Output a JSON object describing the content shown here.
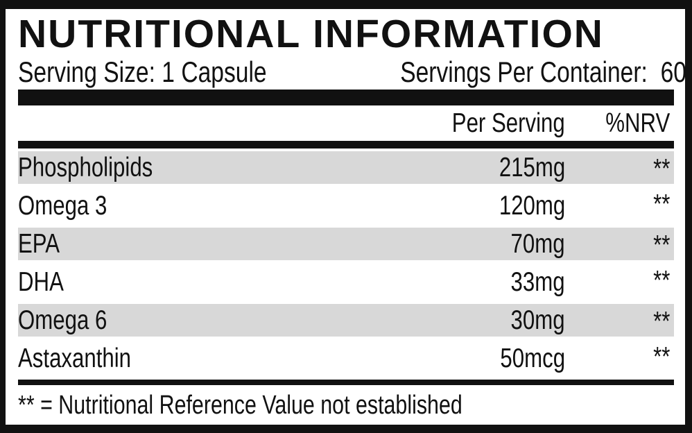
{
  "label": {
    "title": "NUTRITIONAL INFORMATION",
    "serving_size": "Serving Size: 1 Capsule",
    "servings_per_container": "Servings Per Container:  60",
    "columns": {
      "per_serving": "Per Serving",
      "nrv": "%NRV"
    },
    "rows": [
      {
        "name": "Phospholipids",
        "amount": "215mg",
        "nrv": "**"
      },
      {
        "name": "Omega 3",
        "amount": "120mg",
        "nrv": "**"
      },
      {
        "name": "EPA",
        "amount": "70mg",
        "nrv": "**"
      },
      {
        "name": "DHA",
        "amount": "33mg",
        "nrv": "**"
      },
      {
        "name": "Omega 6",
        "amount": "30mg",
        "nrv": "**"
      },
      {
        "name": "Astaxanthin",
        "amount": "50mcg",
        "nrv": "**"
      }
    ],
    "footnote": "** = Nutritional Reference Value not established",
    "colors": {
      "ink": "#111111",
      "row_alt": "#d8d8d8",
      "background": "#ffffff"
    }
  }
}
